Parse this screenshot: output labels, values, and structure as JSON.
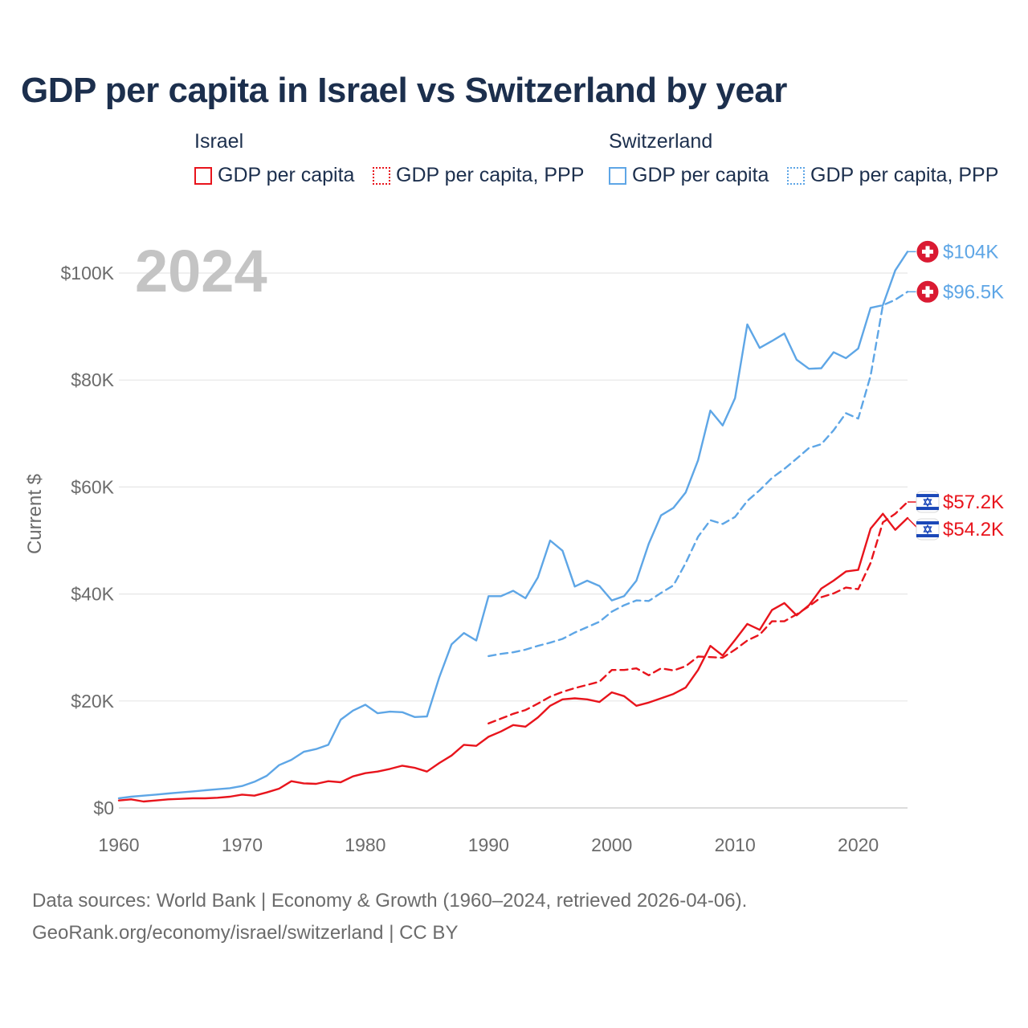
{
  "title": "GDP per capita in Israel vs Switzerland by year",
  "legend": {
    "groups": [
      {
        "name": "Israel",
        "color": "#e8141c",
        "items": [
          {
            "label": "GDP per capita",
            "style": "solid"
          },
          {
            "label": "GDP per capita, PPP",
            "style": "dotted"
          }
        ]
      },
      {
        "name": "Switzerland",
        "color": "#5ea6e6",
        "items": [
          {
            "label": "GDP per capita",
            "style": "solid"
          },
          {
            "label": "GDP per capita, PPP",
            "style": "dotted"
          }
        ]
      }
    ]
  },
  "chart_data": {
    "type": "line",
    "title": "GDP per capita in Israel vs Switzerland by year",
    "xlabel": "",
    "ylabel": "Current $",
    "year_label": "2024",
    "xlim": [
      1960,
      2024
    ],
    "ylim": [
      0,
      100000
    ],
    "x_ticks": [
      1960,
      1970,
      1980,
      1990,
      2000,
      2010,
      2020
    ],
    "y_ticks": [
      0,
      20000,
      40000,
      60000,
      80000,
      100000
    ],
    "y_tick_labels": [
      "$0",
      "$20K",
      "$40K",
      "$60K",
      "$80K",
      "$100K"
    ],
    "grid": true,
    "series": [
      {
        "name": "Switzerland GDP per capita",
        "color": "#5ea6e6",
        "dash": false,
        "end_label": "$104K",
        "flag": "switzerland-flag",
        "x": [
          1960,
          1961,
          1962,
          1963,
          1964,
          1965,
          1966,
          1967,
          1968,
          1969,
          1970,
          1971,
          1972,
          1973,
          1974,
          1975,
          1976,
          1977,
          1978,
          1979,
          1980,
          1981,
          1982,
          1983,
          1984,
          1985,
          1986,
          1987,
          1988,
          1989,
          1990,
          1991,
          1992,
          1993,
          1994,
          1995,
          1996,
          1997,
          1998,
          1999,
          2000,
          2001,
          2002,
          2003,
          2004,
          2005,
          2006,
          2007,
          2008,
          2009,
          2010,
          2011,
          2012,
          2013,
          2014,
          2015,
          2016,
          2017,
          2018,
          2019,
          2020,
          2021,
          2022,
          2023,
          2024
        ],
        "values": [
          1800,
          2100,
          2300,
          2500,
          2700,
          2900,
          3100,
          3300,
          3500,
          3700,
          4100,
          4900,
          6000,
          8000,
          9000,
          10500,
          11000,
          11800,
          16500,
          18200,
          19300,
          17700,
          18000,
          17900,
          17000,
          17100,
          24400,
          30600,
          32700,
          31300,
          39600,
          39600,
          40600,
          39200,
          43100,
          50000,
          48100,
          41400,
          42500,
          41500,
          38800,
          39600,
          42500,
          49400,
          54700,
          56100,
          59000,
          65000,
          74300,
          71500,
          76600,
          90400,
          86000,
          87300,
          88700,
          83800,
          82100,
          82200,
          85200,
          84100,
          85900,
          93500,
          94000,
          100500,
          104000
        ]
      },
      {
        "name": "Switzerland GDP per capita, PPP",
        "color": "#5ea6e6",
        "dash": true,
        "end_label": "$96.5K",
        "flag": "switzerland-flag",
        "x": [
          1990,
          1991,
          1992,
          1993,
          1994,
          1995,
          1996,
          1997,
          1998,
          1999,
          2000,
          2001,
          2002,
          2003,
          2004,
          2005,
          2006,
          2007,
          2008,
          2009,
          2010,
          2011,
          2012,
          2013,
          2014,
          2015,
          2016,
          2017,
          2018,
          2019,
          2020,
          2021,
          2022,
          2023,
          2024
        ],
        "values": [
          28400,
          28800,
          29100,
          29600,
          30300,
          30900,
          31600,
          32800,
          33800,
          34800,
          36700,
          37900,
          38800,
          38700,
          40200,
          41600,
          45800,
          50700,
          53800,
          53100,
          54400,
          57400,
          59400,
          61700,
          63400,
          65300,
          67300,
          68000,
          70600,
          73800,
          72800,
          80800,
          94000,
          95000,
          96500
        ]
      },
      {
        "name": "Israel GDP per capita",
        "color": "#e8141c",
        "dash": false,
        "end_label": "$54.2K",
        "flag": "israel-flag",
        "x": [
          1960,
          1961,
          1962,
          1963,
          1964,
          1965,
          1966,
          1967,
          1968,
          1969,
          1970,
          1971,
          1972,
          1973,
          1974,
          1975,
          1976,
          1977,
          1978,
          1979,
          1980,
          1981,
          1982,
          1983,
          1984,
          1985,
          1986,
          1987,
          1988,
          1989,
          1990,
          1991,
          1992,
          1993,
          1994,
          1995,
          1996,
          1997,
          1998,
          1999,
          2000,
          2001,
          2002,
          2003,
          2004,
          2005,
          2006,
          2007,
          2008,
          2009,
          2010,
          2011,
          2012,
          2013,
          2014,
          2015,
          2016,
          2017,
          2018,
          2019,
          2020,
          2021,
          2022,
          2023,
          2024
        ],
        "values": [
          1400,
          1600,
          1200,
          1400,
          1600,
          1700,
          1800,
          1800,
          1900,
          2100,
          2500,
          2300,
          2900,
          3600,
          5000,
          4600,
          4500,
          5000,
          4800,
          5900,
          6500,
          6800,
          7300,
          7900,
          7500,
          6800,
          8400,
          9800,
          11800,
          11600,
          13300,
          14300,
          15500,
          15200,
          16900,
          19100,
          20300,
          20500,
          20300,
          19800,
          21600,
          20900,
          19100,
          19700,
          20500,
          21300,
          22500,
          25800,
          30300,
          28500,
          31400,
          34400,
          33300,
          37000,
          38300,
          36000,
          37900,
          41000,
          42500,
          44200,
          44500,
          52200,
          55000,
          52000,
          54200
        ]
      },
      {
        "name": "Israel GDP per capita, PPP",
        "color": "#e8141c",
        "dash": true,
        "end_label": "$57.2K",
        "flag": "israel-flag",
        "x": [
          1990,
          1991,
          1992,
          1993,
          1994,
          1995,
          1996,
          1997,
          1998,
          1999,
          2000,
          2001,
          2002,
          2003,
          2004,
          2005,
          2006,
          2007,
          2008,
          2009,
          2010,
          2011,
          2012,
          2013,
          2014,
          2015,
          2016,
          2017,
          2018,
          2019,
          2020,
          2021,
          2022,
          2023,
          2024
        ],
        "values": [
          15800,
          16700,
          17600,
          18300,
          19500,
          20800,
          21700,
          22400,
          23000,
          23600,
          25800,
          25800,
          26100,
          24800,
          26100,
          25700,
          26500,
          28300,
          28200,
          28100,
          29600,
          31300,
          32400,
          34900,
          34900,
          36200,
          37700,
          39400,
          40100,
          41200,
          40900,
          45800,
          53400,
          55000,
          57200
        ]
      }
    ]
  },
  "footer": {
    "line1": "Data sources: World Bank | Economy & Growth (1960–2024, retrieved 2026-04-06).",
    "line2": "GeoRank.org/economy/israel/switzerland | CC BY"
  }
}
